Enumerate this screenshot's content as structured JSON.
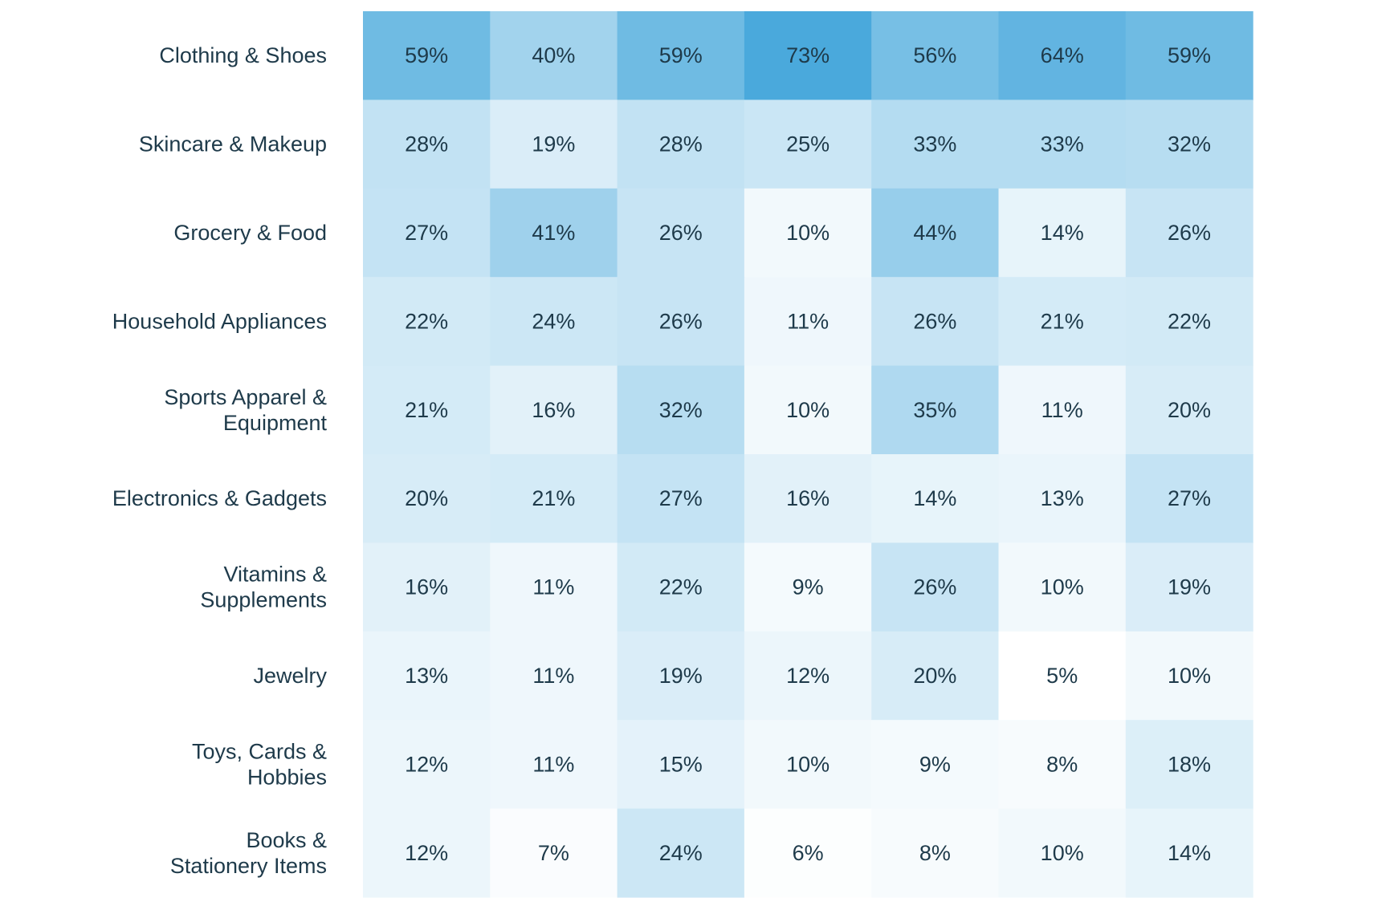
{
  "chart_data": {
    "type": "heatmap",
    "rows": [
      [
        "Clothing & Shoes"
      ],
      [
        "Skincare & Makeup"
      ],
      [
        "Grocery & Food"
      ],
      [
        "Household Appliances"
      ],
      [
        "Sports Apparel &",
        "Equipment"
      ],
      [
        "Electronics & Gadgets"
      ],
      [
        "Vitamins &",
        "Supplements"
      ],
      [
        "Jewelry"
      ],
      [
        "Toys, Cards &",
        "Hobbies"
      ],
      [
        "Books &",
        "Stationery Items"
      ]
    ],
    "columns": 7,
    "values": [
      [
        59,
        40,
        59,
        73,
        56,
        64,
        59
      ],
      [
        28,
        19,
        28,
        25,
        33,
        33,
        32
      ],
      [
        27,
        41,
        26,
        10,
        44,
        14,
        26
      ],
      [
        22,
        24,
        26,
        11,
        26,
        21,
        22
      ],
      [
        21,
        16,
        32,
        10,
        35,
        11,
        20
      ],
      [
        20,
        21,
        27,
        16,
        14,
        13,
        27
      ],
      [
        16,
        11,
        22,
        9,
        26,
        10,
        19
      ],
      [
        13,
        11,
        19,
        12,
        20,
        5,
        10
      ],
      [
        12,
        11,
        15,
        10,
        9,
        8,
        18
      ],
      [
        12,
        7,
        24,
        6,
        8,
        10,
        14
      ]
    ],
    "value_suffix": "%",
    "color_scale": {
      "low": "#ffffff",
      "high": "#4aa9dc",
      "min": 5,
      "max": 73
    },
    "label_color": "#1e3a4a"
  }
}
